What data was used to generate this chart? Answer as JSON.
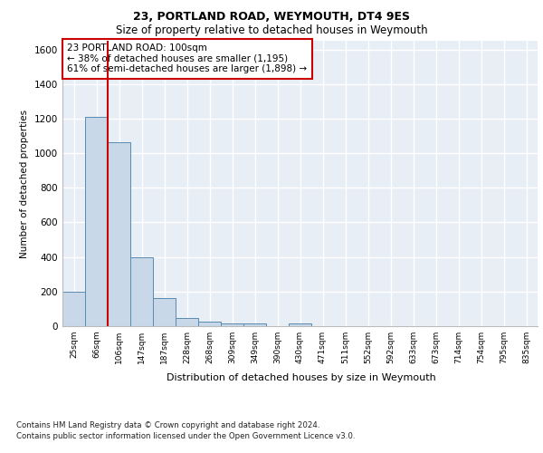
{
  "title1": "23, PORTLAND ROAD, WEYMOUTH, DT4 9ES",
  "title2": "Size of property relative to detached houses in Weymouth",
  "xlabel": "Distribution of detached houses by size in Weymouth",
  "ylabel": "Number of detached properties",
  "categories": [
    "25sqm",
    "66sqm",
    "106sqm",
    "147sqm",
    "187sqm",
    "228sqm",
    "268sqm",
    "309sqm",
    "349sqm",
    "390sqm",
    "430sqm",
    "471sqm",
    "511sqm",
    "552sqm",
    "592sqm",
    "633sqm",
    "673sqm",
    "714sqm",
    "754sqm",
    "795sqm",
    "835sqm"
  ],
  "values": [
    200,
    1210,
    1065,
    400,
    160,
    48,
    27,
    18,
    14,
    0,
    14,
    0,
    0,
    0,
    0,
    0,
    0,
    0,
    0,
    0,
    0
  ],
  "bar_color": "#c8d8e8",
  "bar_edge_color": "#5a8ab0",
  "vline_color": "#cc0000",
  "annotation_text": "23 PORTLAND ROAD: 100sqm\n← 38% of detached houses are smaller (1,195)\n61% of semi-detached houses are larger (1,898) →",
  "annotation_box_color": "#cc0000",
  "ylim": [
    0,
    1650
  ],
  "yticks": [
    0,
    200,
    400,
    600,
    800,
    1000,
    1200,
    1400,
    1600
  ],
  "background_color": "#e8eef6",
  "grid_color": "#ffffff",
  "footnote1": "Contains HM Land Registry data © Crown copyright and database right 2024.",
  "footnote2": "Contains public sector information licensed under the Open Government Licence v3.0."
}
